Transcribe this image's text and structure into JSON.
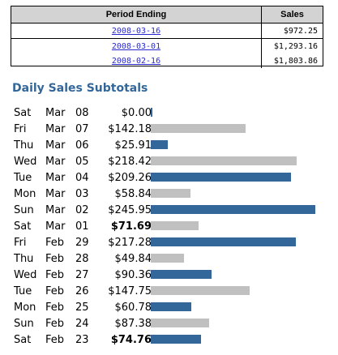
{
  "periods": {
    "headers": [
      "Period Ending",
      "Sales"
    ],
    "rows": [
      {
        "date": "2008-03-16",
        "sales": "$972.25"
      },
      {
        "date": "2008-03-01",
        "sales": "$1,293.16"
      },
      {
        "date": "2008-02-16",
        "sales": "$1,803.86"
      }
    ]
  },
  "daily": {
    "title": "Daily Sales Subtotals",
    "colors": {
      "blue": "#336699",
      "gray": "#c0c0c0"
    },
    "rows": [
      {
        "weekday": "Sat",
        "month": "Mar",
        "day": "08",
        "amount": "$0.00",
        "value": 0.0,
        "color": "blue",
        "bold": false
      },
      {
        "weekday": "Fri",
        "month": "Mar",
        "day": "07",
        "amount": "$142.18",
        "value": 142.18,
        "color": "gray",
        "bold": false
      },
      {
        "weekday": "Thu",
        "month": "Mar",
        "day": "06",
        "amount": "$25.91",
        "value": 25.91,
        "color": "blue",
        "bold": false
      },
      {
        "weekday": "Wed",
        "month": "Mar",
        "day": "05",
        "amount": "$218.42",
        "value": 218.42,
        "color": "gray",
        "bold": false
      },
      {
        "weekday": "Tue",
        "month": "Mar",
        "day": "04",
        "amount": "$209.26",
        "value": 209.26,
        "color": "blue",
        "bold": false
      },
      {
        "weekday": "Mon",
        "month": "Mar",
        "day": "03",
        "amount": "$58.84",
        "value": 58.84,
        "color": "gray",
        "bold": false
      },
      {
        "weekday": "Sun",
        "month": "Mar",
        "day": "02",
        "amount": "$245.95",
        "value": 245.95,
        "color": "blue",
        "bold": false
      },
      {
        "weekday": "Sat",
        "month": "Mar",
        "day": "01",
        "amount": "$71.69",
        "value": 71.69,
        "color": "gray",
        "bold": true
      },
      {
        "weekday": "Fri",
        "month": "Feb",
        "day": "29",
        "amount": "$217.28",
        "value": 217.28,
        "color": "blue",
        "bold": false
      },
      {
        "weekday": "Thu",
        "month": "Feb",
        "day": "28",
        "amount": "$49.84",
        "value": 49.84,
        "color": "gray",
        "bold": false
      },
      {
        "weekday": "Wed",
        "month": "Feb",
        "day": "27",
        "amount": "$90.36",
        "value": 90.36,
        "color": "blue",
        "bold": false
      },
      {
        "weekday": "Tue",
        "month": "Feb",
        "day": "26",
        "amount": "$147.75",
        "value": 147.75,
        "color": "gray",
        "bold": false
      },
      {
        "weekday": "Mon",
        "month": "Feb",
        "day": "25",
        "amount": "$60.78",
        "value": 60.78,
        "color": "blue",
        "bold": false
      },
      {
        "weekday": "Sun",
        "month": "Feb",
        "day": "24",
        "amount": "$87.38",
        "value": 87.38,
        "color": "gray",
        "bold": false
      },
      {
        "weekday": "Sat",
        "month": "Feb",
        "day": "23",
        "amount": "$74.76",
        "value": 74.76,
        "color": "blue",
        "bold": true
      }
    ]
  }
}
